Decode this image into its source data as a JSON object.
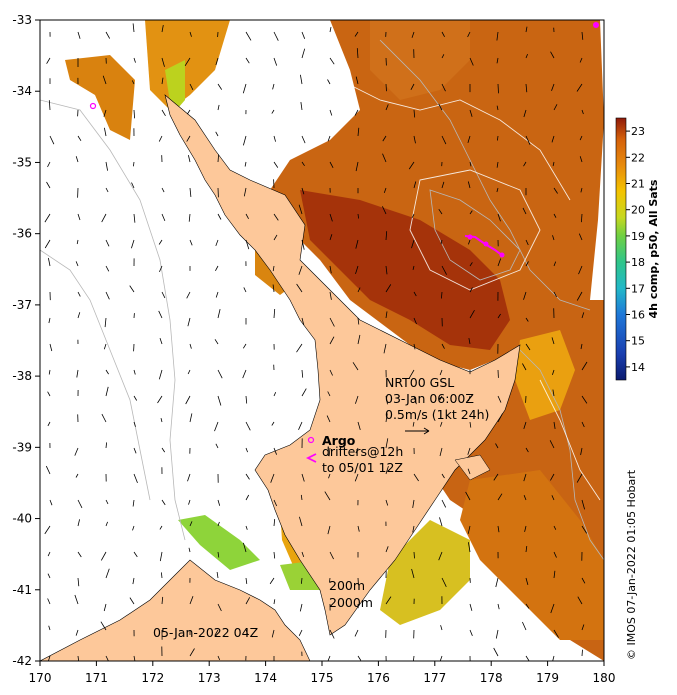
{
  "map": {
    "lon_ticks": [
      "170",
      "171",
      "172",
      "173",
      "174",
      "175",
      "176",
      "177",
      "178",
      "179",
      "180"
    ],
    "lat_ticks": [
      "-33",
      "-34",
      "-35",
      "-36",
      "-37",
      "-38",
      "-39",
      "-40",
      "-41",
      "-42"
    ],
    "lon_range": [
      170,
      180
    ],
    "lat_range": [
      -42,
      -33
    ],
    "current_note": {
      "line1": "NRT00 GSL",
      "line2": "03-Jan 06:00Z",
      "line3": "0.5m/s (1kt 24h)"
    },
    "argo_label": "Argo",
    "drifters_line1": "drifters@12h",
    "drifters_line2": "to 05/01 12Z",
    "isobath_200": "200m",
    "isobath_2000": "2000m",
    "date_stamp": "05-Jan-2022 04Z",
    "credit": "© IMOS 07-Jan-2022 01:05 Hobart"
  },
  "colorbar": {
    "title": "4h comp, p50, All Sats",
    "ticks": [
      "14",
      "15",
      "16",
      "17",
      "18",
      "19",
      "20",
      "21",
      "22",
      "23"
    ],
    "range": [
      13.5,
      23.5
    ],
    "colors": [
      "#0a1a6e",
      "#1a3fb0",
      "#1f78d8",
      "#22b8c8",
      "#2fc58a",
      "#6fd043",
      "#c6d820",
      "#f4c300",
      "#e78a0c",
      "#d4600a",
      "#8f1a0a"
    ]
  },
  "colors": {
    "land": "#fdc89a",
    "sst_warm": "#c25a0e",
    "sst_hot": "#9b2b08",
    "sst_mid": "#e08a10",
    "sst_cool": "#f2c200",
    "sst_green": "#7ad63a",
    "argo": "#ff00ff"
  }
}
